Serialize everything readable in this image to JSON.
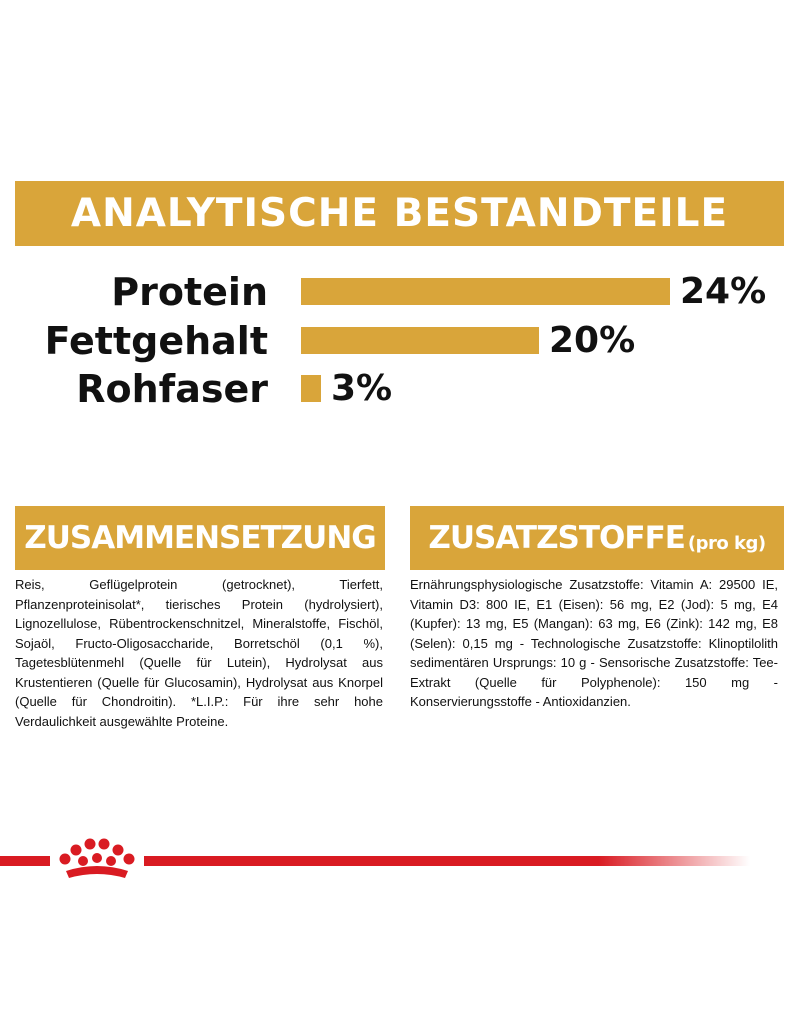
{
  "analytics": {
    "title": "ANALYTISCHE BESTANDTEILE",
    "color": "#d9a53a",
    "items": [
      {
        "label": "Protein",
        "value": "24%",
        "percent": 24
      },
      {
        "label": "Fettgehalt",
        "value": "20%",
        "percent": 20
      },
      {
        "label": "Rohfaser",
        "value": "3%",
        "percent": 3
      }
    ]
  },
  "composition": {
    "title": "ZUSAMMENSETZUNG",
    "text": "Reis, Geflügelprotein (getrocknet), Tierfett, Pflanzenproteinisolat*, tierisches Protein (hydrolysiert), Lignozellulose, Rübentrockenschnitzel, Mineralstoffe, Fischöl, Sojaöl, Fructo-Oligosaccharide, Borretschöl (0,1 %), Tagetesblütenmehl (Quelle für Lutein), Hydrolysat aus Krustentieren (Quelle für Glucosamin), Hydrolysat aus Knorpel (Quelle für Chondroitin). *L.I.P.: Für ihre sehr hohe Verdaulichkeit ausgewählte Proteine."
  },
  "additives": {
    "title": "ZUSATZSTOFFE",
    "subtitle": "(pro kg)",
    "text": "Ernährungsphysiologische Zusatzstoffe: Vitamin A: 29500 IE, Vitamin D3: 800 IE, E1 (Eisen): 56 mg, E2 (Jod): 5 mg, E4 (Kupfer): 13 mg, E5 (Mangan): 63 mg, E6 (Zink): 142 mg, E8 (Selen): 0,15 mg - Technologische Zusatzstoffe: Klinoptilolith sedimentären Ursprungs: 10 g - Sensorische Zusatzstoffe: Tee-Extrakt (Quelle für Polyphenole): 150 mg - Konservierungsstoffe - Antioxidanzien."
  },
  "brand": {
    "icon": "crown-icon",
    "color": "#d91b22"
  }
}
